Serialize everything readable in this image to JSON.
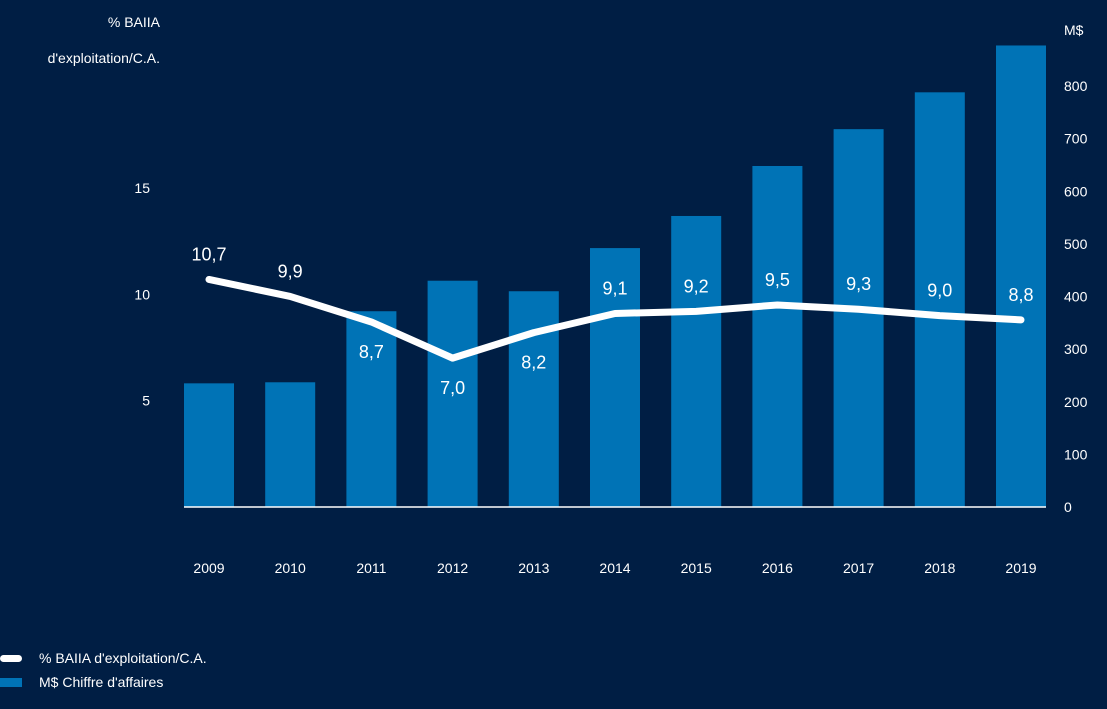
{
  "colors": {
    "background": "#001e44",
    "bar": "#0073b6",
    "line": "#ffffff",
    "text": "#ffffff"
  },
  "left_axis": {
    "title_line1": "% BAIIA",
    "title_line2": "d'exploitation/C.A.",
    "ticks": [
      "5",
      "10",
      "15"
    ]
  },
  "right_axis": {
    "title": "M$",
    "ticks": [
      "0",
      "100",
      "200",
      "300",
      "400",
      "500",
      "600",
      "700",
      "800"
    ]
  },
  "legend": {
    "line_label": "% BAIIA d'exploitation/C.A.",
    "bar_label": "M$ Chiffre d'affaires"
  },
  "chart_data": {
    "type": "bar",
    "categories": [
      "2009",
      "2010",
      "2011",
      "2012",
      "2013",
      "2014",
      "2015",
      "2016",
      "2017",
      "2018",
      "2019"
    ],
    "series": [
      {
        "name": "M$ Chiffre d'affaires",
        "type": "bar",
        "axis": "right",
        "values": [
          235,
          237,
          372,
          430,
          410,
          492,
          553,
          648,
          718,
          788,
          877
        ]
      },
      {
        "name": "% BAIIA d'exploitation/C.A.",
        "type": "line",
        "axis": "left",
        "values": [
          10.7,
          9.9,
          8.7,
          7.0,
          8.2,
          9.1,
          9.2,
          9.5,
          9.3,
          9.0,
          8.8
        ],
        "labels": [
          "10,7",
          "9,9",
          "8,7",
          "7,0",
          "8,2",
          "9,1",
          "9,2",
          "9,5",
          "9,3",
          "9,0",
          "8,8"
        ],
        "label_position": [
          "above",
          "above",
          "below",
          "below",
          "below",
          "above",
          "above",
          "above",
          "above",
          "above",
          "above"
        ]
      }
    ],
    "left_ylim": [
      0,
      20
    ],
    "right_ylim": [
      0,
      800
    ],
    "grid": false,
    "legend_position": "bottom-left"
  }
}
